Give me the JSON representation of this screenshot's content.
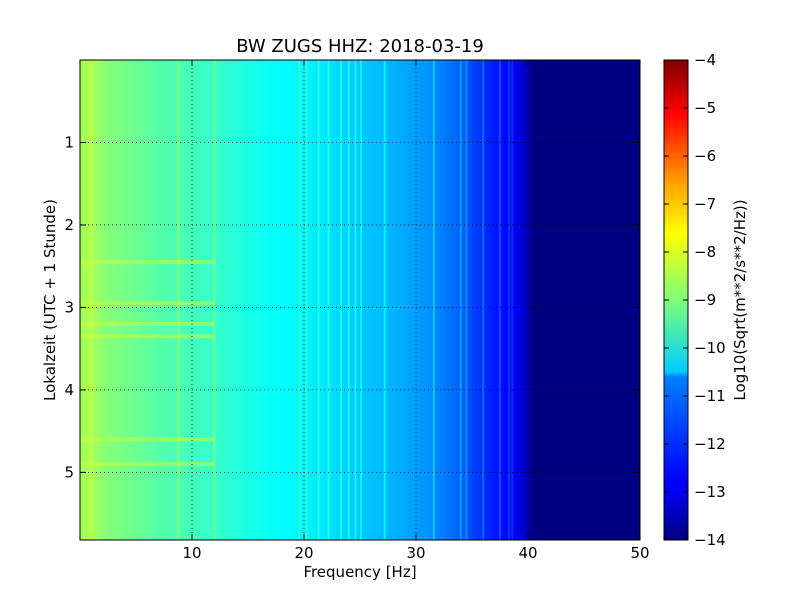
{
  "chart_data": {
    "type": "heatmap",
    "title": "BW ZUGS HHZ: 2018-03-19",
    "xlabel": "Frequency [Hz]",
    "ylabel": "Lokalzeit (UTC + 1 Stunde)",
    "xlim": [
      0,
      50
    ],
    "ylim": [
      5.82,
      0
    ],
    "x_ticks": [
      10,
      20,
      30,
      40,
      50
    ],
    "y_ticks": [
      1,
      2,
      3,
      4,
      5
    ],
    "grid": true,
    "colormap": "jet",
    "colorbar": {
      "label": "Log10(Sqrt(m**2/s**2/Hz))",
      "range": [
        -14,
        -4
      ],
      "ticks": [
        -4,
        -5,
        -6,
        -7,
        -8,
        -9,
        -10,
        -11,
        -12,
        -13,
        -14
      ]
    },
    "spectral_profile": {
      "frequency_hz": [
        0,
        1,
        2,
        4,
        7,
        10,
        13,
        16,
        19,
        22,
        25,
        28,
        31,
        34,
        36,
        38,
        39.5,
        40.5,
        50
      ],
      "log10_amplitude": [
        -8.7,
        -8.5,
        -8.9,
        -9.1,
        -9.4,
        -9.6,
        -9.8,
        -10.1,
        -10.3,
        -10.5,
        -10.8,
        -11.0,
        -11.3,
        -11.8,
        -12.3,
        -12.7,
        -13.1,
        -14.0,
        -14.0
      ]
    },
    "narrowband_lines_hz": [
      8.8,
      12.0,
      19.6,
      20.2,
      21.3,
      22.2,
      23.3,
      24.0,
      24.6,
      25.1,
      27.2,
      31.6,
      34.0,
      34.5,
      36.0,
      37.5,
      38.3,
      38.6
    ],
    "broadband_events_local_time": [
      2.45,
      2.95,
      3.2,
      3.35,
      4.6,
      4.9
    ]
  }
}
